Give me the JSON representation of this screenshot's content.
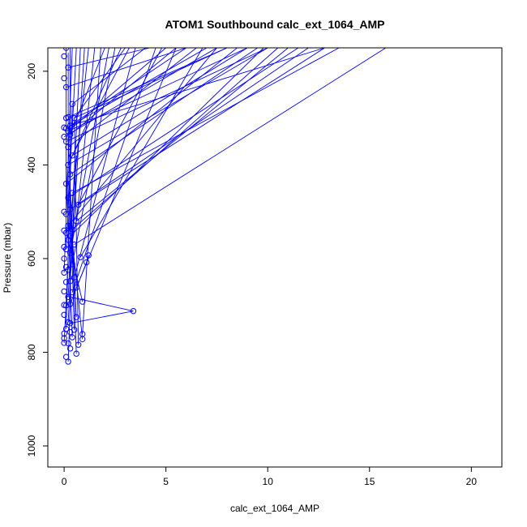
{
  "chart_data": {
    "type": "scatter",
    "title": "ATOM1 Southbound calc_ext_1064_AMP",
    "xlabel": "calc_ext_1064_AMP",
    "ylabel": "Pressure (mbar)",
    "xlim": [
      -0.8,
      21.5
    ],
    "ylim": [
      1045,
      150
    ],
    "y_reversed": true,
    "x_ticks": [
      0,
      5,
      10,
      15,
      20
    ],
    "y_ticks": [
      200,
      400,
      600,
      800,
      1000
    ],
    "grid": false,
    "legend": "none",
    "series_color": "#0000ff",
    "points": [
      [
        0.2,
        820
      ],
      [
        0.1,
        810
      ],
      [
        0.6,
        803
      ],
      [
        0.3,
        792
      ],
      [
        0.2,
        781
      ],
      [
        0.0,
        780
      ],
      [
        0.7,
        784
      ],
      [
        0.9,
        772
      ],
      [
        0.4,
        768
      ],
      [
        0.0,
        770
      ],
      [
        0.0,
        760
      ],
      [
        0.3,
        757
      ],
      [
        0.9,
        761
      ],
      [
        0.1,
        750
      ],
      [
        0.5,
        752
      ],
      [
        0.3,
        738
      ],
      [
        0.2,
        736
      ],
      [
        0.6,
        725
      ],
      [
        0.0,
        720
      ],
      [
        3.4,
        712
      ],
      [
        0.1,
        700
      ],
      [
        0.3,
        697
      ],
      [
        0.9,
        692
      ],
      [
        0.0,
        699
      ],
      [
        0.2,
        682
      ],
      [
        0.4,
        672
      ],
      [
        0.0,
        670
      ],
      [
        0.6,
        662
      ],
      [
        0.1,
        650
      ],
      [
        0.3,
        648
      ],
      [
        0.5,
        640
      ],
      [
        0.0,
        630
      ],
      [
        0.2,
        624
      ],
      [
        0.1,
        618
      ],
      [
        0.4,
        612
      ],
      [
        1.1,
        608
      ],
      [
        1.2,
        593
      ],
      [
        0.8,
        597
      ],
      [
        0.0,
        600
      ],
      [
        0.3,
        588
      ],
      [
        0.1,
        580
      ],
      [
        0.0,
        575
      ],
      [
        0.5,
        570
      ],
      [
        0.2,
        560
      ],
      [
        0.3,
        552
      ],
      [
        0.1,
        545
      ],
      [
        0.4,
        538
      ],
      [
        0.0,
        540
      ],
      [
        0.2,
        530
      ],
      [
        0.6,
        520
      ],
      [
        0.1,
        505
      ],
      [
        0.0,
        500
      ],
      [
        0.3,
        495
      ],
      [
        0.7,
        485
      ],
      [
        0.2,
        470
      ],
      [
        0.4,
        460
      ],
      [
        0.1,
        440
      ],
      [
        0.3,
        420
      ],
      [
        0.2,
        400
      ],
      [
        0.4,
        380
      ],
      [
        0.2,
        362
      ],
      [
        0.1,
        350
      ],
      [
        0.0,
        340
      ],
      [
        0.3,
        335
      ],
      [
        0.2,
        328
      ],
      [
        0.1,
        322
      ],
      [
        0.3,
        316
      ],
      [
        0.0,
        320
      ],
      [
        0.5,
        300
      ],
      [
        0.2,
        298
      ],
      [
        0.1,
        300
      ],
      [
        0.4,
        270
      ],
      [
        0.1,
        234
      ],
      [
        0.0,
        215
      ],
      [
        0.2,
        192
      ],
      [
        0.0,
        168
      ],
      [
        0.1,
        150
      ]
    ],
    "segments": [
      [
        [
          0.2,
          820
        ],
        [
          0.3,
          700
        ]
      ],
      [
        [
          0.6,
          803
        ],
        [
          0.4,
          560
        ]
      ],
      [
        [
          0.9,
          772
        ],
        [
          0.3,
          520
        ]
      ],
      [
        [
          0.4,
          768
        ],
        [
          0.1,
          400
        ]
      ],
      [
        [
          0.7,
          784
        ],
        [
          0.5,
          300
        ]
      ],
      [
        [
          0.3,
          738
        ],
        [
          3.4,
          712
        ]
      ],
      [
        [
          3.4,
          712
        ],
        [
          0.1,
          680
        ]
      ],
      [
        [
          0.3,
          697
        ],
        [
          1.1,
          608
        ]
      ],
      [
        [
          1.1,
          608
        ],
        [
          1.2,
          593
        ]
      ],
      [
        [
          0.9,
          692
        ],
        [
          0.2,
          560
        ]
      ],
      [
        [
          0.5,
          752
        ],
        [
          0.2,
          330
        ]
      ],
      [
        [
          0.2,
          736
        ],
        [
          0.6,
          380
        ]
      ],
      [
        [
          0.6,
          725
        ],
        [
          0.3,
          450
        ]
      ],
      [
        [
          0.0,
          780
        ],
        [
          0.2,
          600
        ]
      ],
      [
        [
          0.1,
          750
        ],
        [
          0.4,
          270
        ]
      ],
      [
        [
          0.3,
          335
        ],
        [
          2.0,
          150
        ]
      ],
      [
        [
          0.5,
          300
        ],
        [
          3.0,
          150
        ]
      ],
      [
        [
          0.4,
          270
        ],
        [
          4.0,
          150
        ]
      ],
      [
        [
          0.2,
          328
        ],
        [
          5.0,
          150
        ]
      ],
      [
        [
          0.3,
          316
        ],
        [
          6.0,
          150
        ]
      ],
      [
        [
          0.1,
          322
        ],
        [
          7.0,
          150
        ]
      ],
      [
        [
          0.2,
          298
        ],
        [
          8.0,
          150
        ]
      ],
      [
        [
          0.4,
          380
        ],
        [
          9.0,
          150
        ]
      ],
      [
        [
          0.2,
          400
        ],
        [
          10.0,
          150
        ]
      ],
      [
        [
          0.6,
          520
        ],
        [
          11.0,
          150
        ]
      ],
      [
        [
          0.3,
          495
        ],
        [
          12.0,
          150
        ]
      ],
      [
        [
          0.7,
          485
        ],
        [
          12.8,
          150
        ]
      ],
      [
        [
          0.5,
          570
        ],
        [
          15.8,
          150
        ]
      ],
      [
        [
          0.4,
          460
        ],
        [
          13.5,
          150
        ]
      ],
      [
        [
          0.2,
          470
        ],
        [
          11.5,
          150
        ]
      ],
      [
        [
          0.3,
          420
        ],
        [
          9.5,
          150
        ]
      ],
      [
        [
          0.1,
          440
        ],
        [
          8.5,
          150
        ]
      ],
      [
        [
          0.2,
          362
        ],
        [
          6.5,
          150
        ]
      ],
      [
        [
          0.4,
          538
        ],
        [
          10.5,
          150
        ]
      ],
      [
        [
          0.2,
          530
        ],
        [
          7.5,
          150
        ]
      ],
      [
        [
          0.3,
          552
        ],
        [
          9.8,
          150
        ]
      ],
      [
        [
          0.6,
          662
        ],
        [
          5.5,
          150
        ]
      ],
      [
        [
          0.4,
          672
        ],
        [
          4.5,
          150
        ]
      ],
      [
        [
          0.5,
          640
        ],
        [
          3.5,
          150
        ]
      ],
      [
        [
          0.4,
          612
        ],
        [
          2.5,
          150
        ]
      ],
      [
        [
          0.3,
          588
        ],
        [
          2.2,
          150
        ]
      ],
      [
        [
          0.9,
          761
        ],
        [
          1.8,
          150
        ]
      ],
      [
        [
          0.6,
          520
        ],
        [
          1.5,
          150
        ]
      ],
      [
        [
          0.2,
          560
        ],
        [
          1.2,
          150
        ]
      ],
      [
        [
          0.3,
          648
        ],
        [
          1.0,
          150
        ]
      ],
      [
        [
          0.2,
          682
        ],
        [
          0.8,
          150
        ]
      ],
      [
        [
          0.1,
          580
        ],
        [
          0.6,
          150
        ]
      ],
      [
        [
          0.0,
          630
        ],
        [
          0.4,
          150
        ]
      ],
      [
        [
          0.3,
          700
        ],
        [
          0.3,
          150
        ]
      ],
      [
        [
          0.2,
          624
        ],
        [
          0.2,
          160
        ]
      ],
      [
        [
          0.1,
          505
        ],
        [
          0.1,
          150
        ]
      ],
      [
        [
          0.2,
          192
        ],
        [
          4.2,
          150
        ]
      ],
      [
        [
          0.1,
          234
        ],
        [
          6.0,
          150
        ]
      ],
      [
        [
          0.3,
          316
        ],
        [
          12.8,
          150
        ]
      ],
      [
        [
          0.1,
          350
        ],
        [
          10.0,
          150
        ]
      ],
      [
        [
          0.0,
          340
        ],
        [
          7.5,
          150
        ]
      ],
      [
        [
          0.2,
          328
        ],
        [
          9.0,
          150
        ]
      ],
      [
        [
          0.5,
          300
        ],
        [
          8.0,
          150
        ]
      ],
      [
        [
          0.3,
          335
        ],
        [
          5.5,
          150
        ]
      ],
      [
        [
          0.8,
          597
        ],
        [
          6.8,
          150
        ]
      ],
      [
        [
          0.4,
          380
        ],
        [
          3.2,
          150
        ]
      ],
      [
        [
          0.2,
          400
        ],
        [
          2.8,
          150
        ]
      ],
      [
        [
          0.7,
          485
        ],
        [
          4.8,
          150
        ]
      ]
    ]
  }
}
